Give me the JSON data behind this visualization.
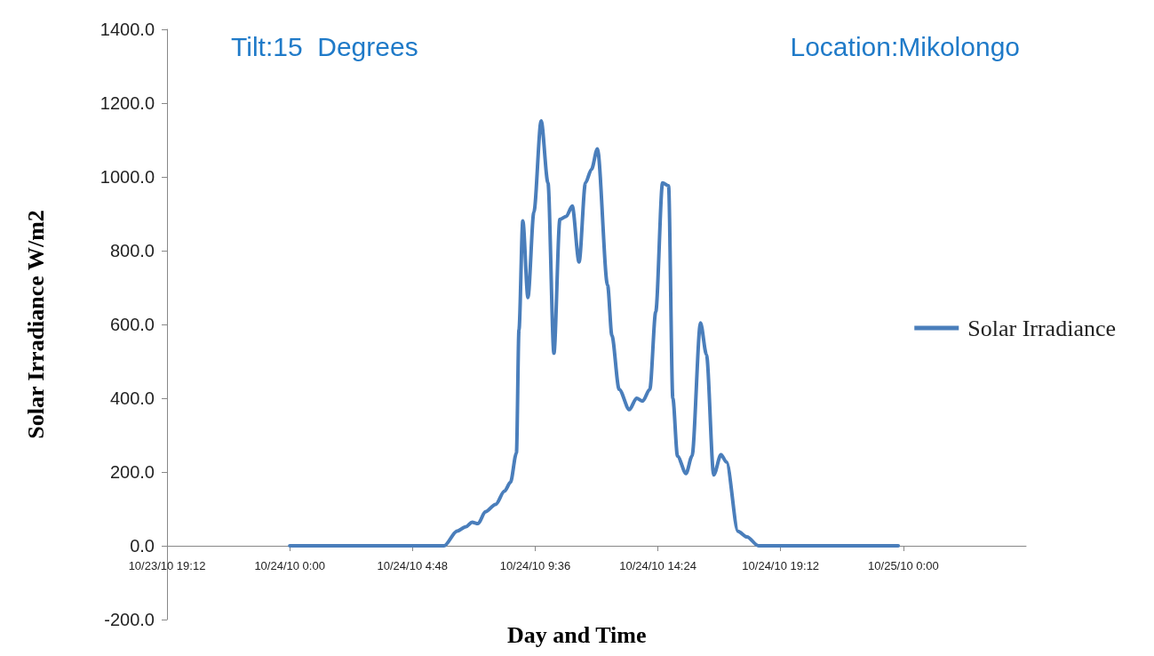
{
  "chart_data": {
    "type": "line",
    "title": "Tilt:15  Degrees",
    "subtitle": "Location:Mikolongo",
    "xlabel": "Day and Time",
    "ylabel": "Solar Irradiance W/m2",
    "x": [
      "--10-24T00:00",
      "--10-24T06:02",
      "--10-24T06:33",
      "--10-24T06:54",
      "--10-24T07:08",
      "--10-24T07:22",
      "--10-24T07:39",
      "--10-24T08:03",
      "--10-24T08:24",
      "--10-24T08:38",
      "--10-24T08:52",
      "--10-24T08:58",
      "--10-24T09:07",
      "--10-24T09:19",
      "--10-24T09:33",
      "--10-24T09:50",
      "--10-24T10:06",
      "--10-24T10:20",
      "--10-24T10:34",
      "--10-24T10:49",
      "--10-24T11:03",
      "--10-24T11:19",
      "--10-24T11:34",
      "--10-24T11:48",
      "--10-24T12:02",
      "--10-24T12:26",
      "--10-24T12:36",
      "--10-24T12:53",
      "--10-24T13:17",
      "--10-24T13:34",
      "--10-24T13:48",
      "--10-24T14:05",
      "--10-24T14:19",
      "--10-24T14:35",
      "--10-24T14:49",
      "--10-24T14:59",
      "--10-24T15:10",
      "--10-24T15:30",
      "--10-24T15:44",
      "--10-24T16:04",
      "--10-24T16:18",
      "--10-24T16:35",
      "--10-24T16:52",
      "--10-24T17:05",
      "--10-24T17:32",
      "--10-24T17:53",
      "--10-24T18:20",
      "--10-24T23:48"
    ],
    "series": [
      {
        "name": "Solar Irradiance",
        "color": "#4a7ebb",
        "values": [
          0,
          0,
          40,
          52,
          64,
          60,
          92,
          112,
          148,
          172,
          252,
          586,
          881,
          673,
          905,
          1152,
          984,
          522,
          885,
          893,
          921,
          769,
          984,
          1020,
          1076,
          706,
          570,
          424,
          369,
          400,
          392,
          424,
          635,
          984,
          976,
          400,
          243,
          196,
          243,
          604,
          518,
          192,
          247,
          227,
          39,
          24,
          0,
          0
        ]
      }
    ],
    "xlim": [
      "--10-23T19:12",
      "--10-25T04:48"
    ],
    "xticks": [
      {
        "value": "--10-23T19:12",
        "label": "10/23/10 19:12"
      },
      {
        "value": "--10-24T00:00",
        "label": "10/24/10 0:00"
      },
      {
        "value": "--10-24T04:48",
        "label": "10/24/10 4:48"
      },
      {
        "value": "--10-24T09:36",
        "label": "10/24/10 9:36"
      },
      {
        "value": "--10-24T14:24",
        "label": "10/24/10 14:24"
      },
      {
        "value": "--10-24T19:12",
        "label": "10/24/10 19:12"
      },
      {
        "value": "--10-25T00:00",
        "label": "10/25/10 0:00"
      }
    ],
    "ylim": [
      -200,
      1400
    ],
    "yticks": [
      {
        "value": -200,
        "label": "-200.0"
      },
      {
        "value": 0,
        "label": "0.0"
      },
      {
        "value": 200,
        "label": "200.0"
      },
      {
        "value": 400,
        "label": "400.0"
      },
      {
        "value": 600,
        "label": "600.0"
      },
      {
        "value": 800,
        "label": "800.0"
      },
      {
        "value": 1000,
        "label": "1000.0"
      },
      {
        "value": 1200,
        "label": "1200.0"
      },
      {
        "value": 1400,
        "label": "1400.0"
      }
    ],
    "grid": false,
    "legend": "right",
    "marker": "none",
    "line_style": "solid"
  }
}
